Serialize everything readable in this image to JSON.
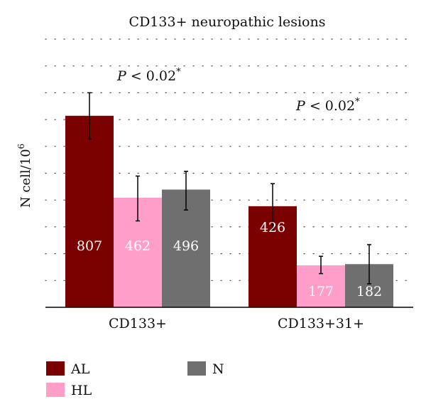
{
  "chart_data": {
    "type": "bar",
    "title": "CD133+ neuropathic lesions",
    "ylabel_base": "N cell/10",
    "ylabel_exp": "6",
    "categories": [
      "CD133+",
      "CD133+31+"
    ],
    "series": [
      {
        "name": "AL",
        "color": "#7b0000",
        "label_color": "#ffffff",
        "values": [
          807,
          426
        ],
        "err_low": [
          709,
          324
        ],
        "err_high": [
          904,
          521
        ]
      },
      {
        "name": "HL",
        "color": "#ff9ec8",
        "label_color": "#ffffff",
        "values": [
          462,
          177
        ],
        "err_low": [
          364,
          142
        ],
        "err_high": [
          553,
          215
        ]
      },
      {
        "name": "N",
        "color": "#6f6f6f",
        "label_color": "#ffffff",
        "values": [
          496,
          182
        ],
        "err_low": [
          410,
          99
        ],
        "err_high": [
          573,
          264
        ]
      }
    ],
    "ylim": [
      0,
      1130
    ],
    "grid": true,
    "grid_style": "dotted",
    "annotations": [
      {
        "text": "P < 0.02",
        "sup": "*",
        "category": 0
      },
      {
        "text": "P < 0.02",
        "sup": "*",
        "category": 1
      }
    ],
    "legend_position": "bottom-left"
  }
}
